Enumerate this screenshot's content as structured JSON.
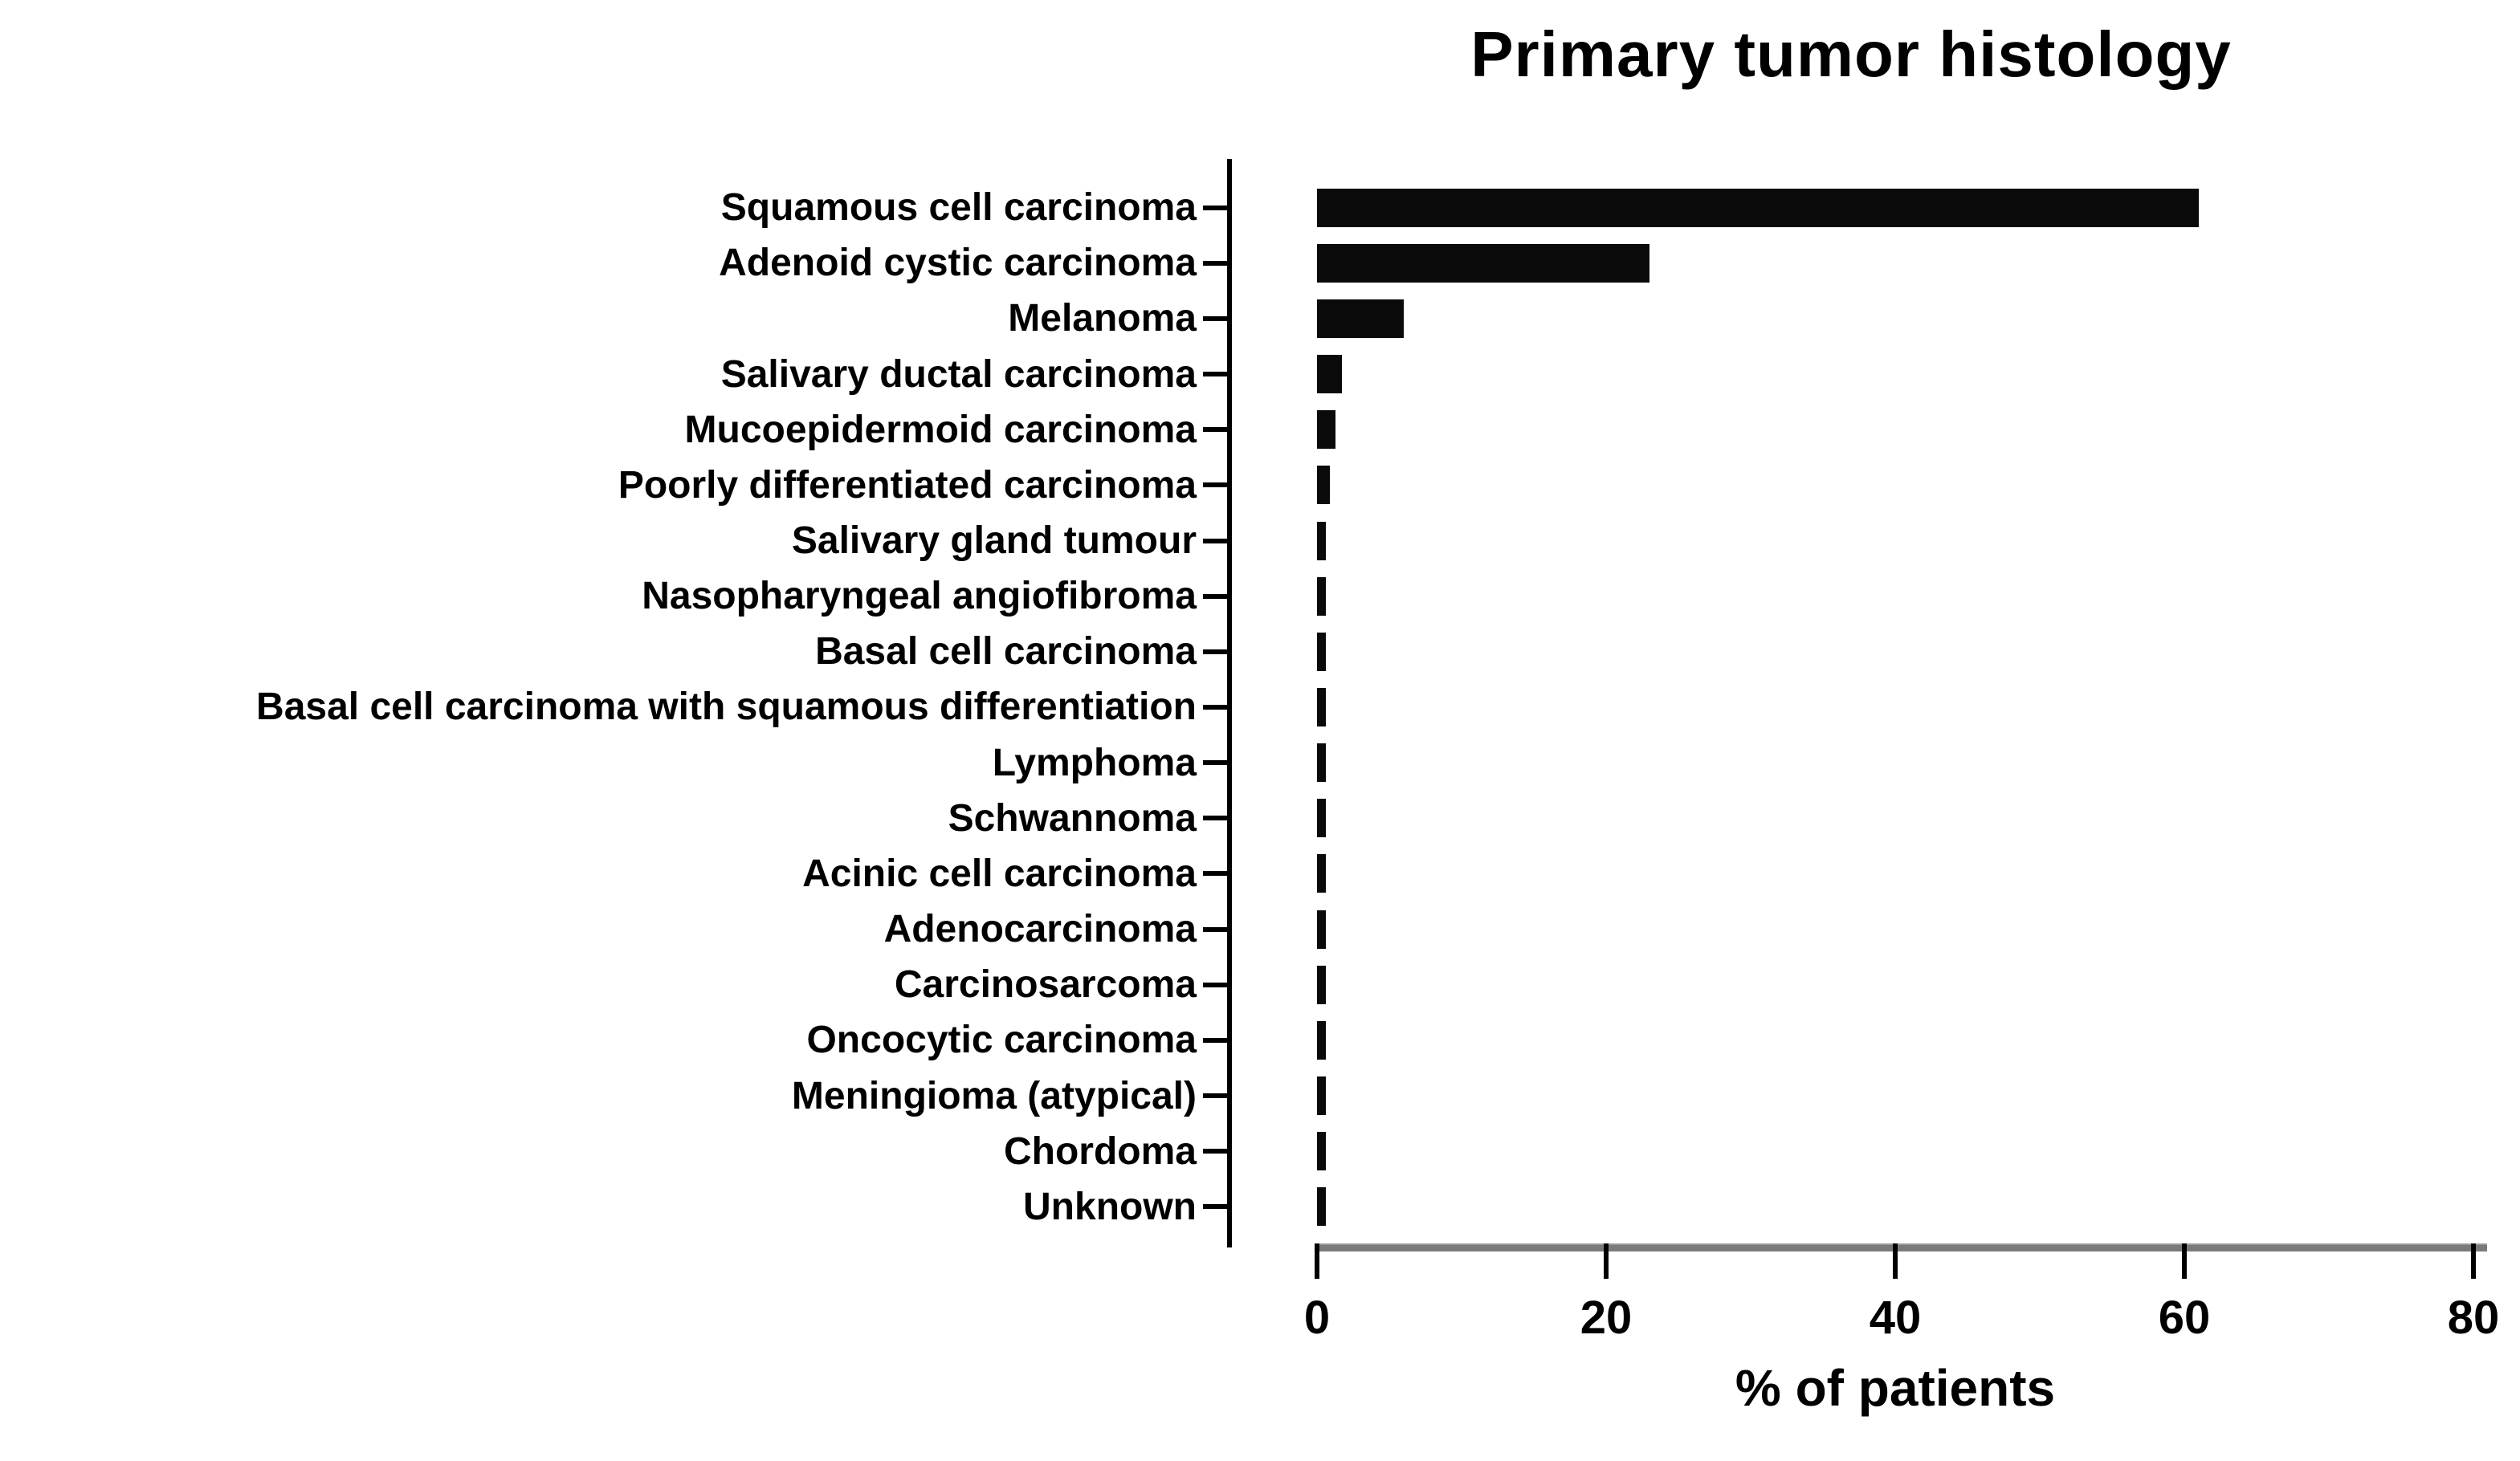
{
  "figure": {
    "background_color": "#ffffff",
    "text_color": "#000000",
    "bar_color": "#0a0a0a",
    "x_axis_line_color": "#7a7a7a"
  },
  "chart_data": {
    "type": "bar",
    "orientation": "horizontal",
    "title": "Primary tumor histology",
    "xlabel": "% of patients",
    "ylabel": "",
    "xlim": [
      0,
      80
    ],
    "x_ticks": [
      0,
      20,
      40,
      60,
      80
    ],
    "grid": false,
    "legend": false,
    "categories": [
      "Squamous cell carcinoma",
      "Adenoid cystic carcinoma",
      "Melanoma",
      "Salivary ductal carcinoma",
      "Mucoepidermoid carcinoma",
      "Poorly differentiated carcinoma",
      "Salivary gland tumour",
      "Nasopharyngeal angiofibroma",
      "Basal cell carcinoma",
      "Basal cell carcinoma with squamous differentiation",
      "Lymphoma",
      "Schwannoma",
      "Acinic cell carcinoma",
      "Adenocarcinoma",
      "Carcinosarcoma",
      "Oncocytic carcinoma",
      "Meningioma (atypical)",
      "Chordoma",
      "Unknown"
    ],
    "values": [
      61,
      23,
      6,
      1.7,
      1.3,
      0.9,
      0.5,
      0.5,
      0.5,
      0.5,
      0.5,
      0.5,
      0.5,
      0.5,
      0.5,
      0.5,
      0.5,
      0.5,
      0.5
    ]
  }
}
